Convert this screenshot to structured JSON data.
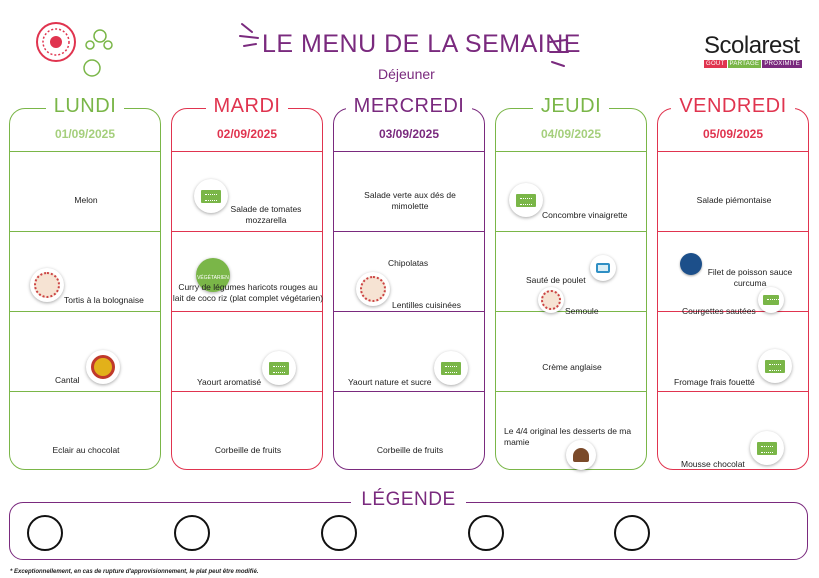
{
  "header": {
    "title": "LE MENU DE LA SEMAINE",
    "subtitle": "Déjeuner",
    "brand": "Scolarest",
    "brand_tags": [
      "GOÛT",
      "PARTAGE",
      "PROXIMITÉ"
    ]
  },
  "days": [
    {
      "name": "LUNDI",
      "date": "01/09/2025",
      "color": "#7ab648",
      "dishes": [
        "Melon",
        "Tortis à la bolognaise",
        "Cantal",
        "",
        "Eclair au chocolat"
      ]
    },
    {
      "name": "MARDI",
      "date": "02/09/2025",
      "color": "#e0344f",
      "dishes": [
        "Salade de tomates mozzarella",
        "Curry de légumes haricots rouges au lait de coco riz (plat complet végétarien)",
        "Yaourt aromatisé",
        "",
        "Corbeille de fruits"
      ],
      "veg_badge": "VÉGÉTARIEN"
    },
    {
      "name": "MERCREDI",
      "date": "03/09/2025",
      "color": "#7a2a7e",
      "dishes": [
        "Salade verte aux dés de mimolette",
        "Chipolatas",
        "Lentilles cuisinées",
        "Yaourt nature et sucre",
        "Corbeille de fruits"
      ]
    },
    {
      "name": "JEUDI",
      "date": "04/09/2025",
      "color": "#7ab648",
      "dishes": [
        "Concombre vinaigrette",
        "Sauté de poulet",
        "Semoule",
        "Crème anglaise",
        "Le 4/4 original les desserts de ma mamie"
      ]
    },
    {
      "name": "VENDREDI",
      "date": "05/09/2025",
      "color": "#e0344f",
      "dishes": [
        "Salade piémontaise",
        "Filet de poisson sauce curcuma",
        "Courgettes sautées",
        "Fromage frais fouetté",
        "Mousse chocolat"
      ]
    }
  ],
  "legend": {
    "title": "LÉGENDE",
    "circles": 5,
    "footnote": "* Exceptionnellement, en cas de rupture d'approvisionnement, le plat peut être modifié."
  },
  "colors": {
    "purple": "#7a2a7e",
    "green": "#7ab648",
    "red": "#e0344f"
  }
}
